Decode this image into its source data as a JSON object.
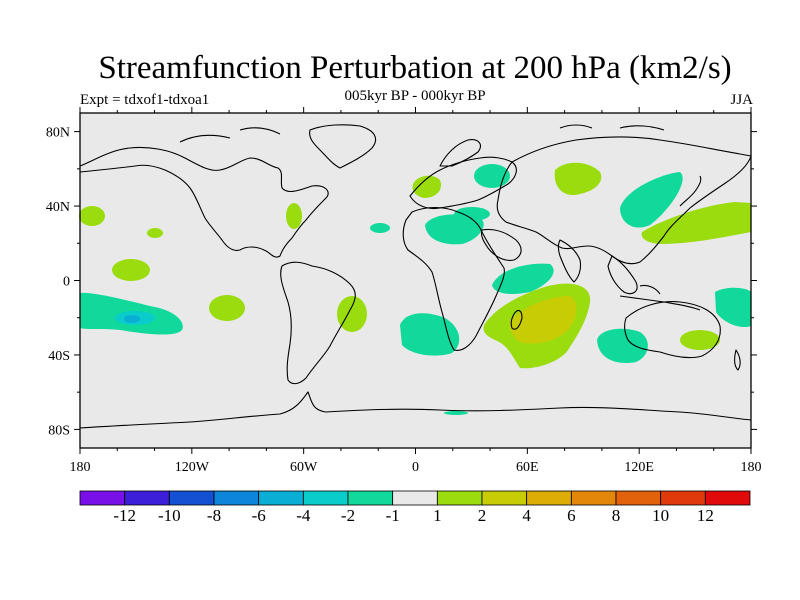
{
  "header": {
    "title": "Streamfunction Perturbation at 200 hPa (km2/s)",
    "subtitle": "005kyr BP - 000kyr BP",
    "experiment": "Expt = tdxof1-tdxoa1",
    "season": "JJA"
  },
  "axes": {
    "lat_ticks": [
      "80N",
      "40N",
      "0",
      "40S",
      "80S"
    ],
    "lon_ticks": [
      "180",
      "120W",
      "60W",
      "0",
      "60E",
      "120E",
      "180"
    ]
  },
  "colorbar": {
    "labels": [
      "-12",
      "-10",
      "-8",
      "-6",
      "-4",
      "-2",
      "-1",
      "1",
      "2",
      "4",
      "6",
      "8",
      "10",
      "12"
    ],
    "colors": [
      "#7a10e8",
      "#3c1fd8",
      "#1450d2",
      "#0b86da",
      "#0aaed4",
      "#09cccb",
      "#11d99b",
      "#e9e9e9",
      "#9bdc0e",
      "#c8cc05",
      "#ddad05",
      "#e2870a",
      "#e2620b",
      "#e0390c",
      "#e00a0a"
    ]
  },
  "colors": {
    "land_background": "#e9e9e9",
    "negative_1": "#11d99b",
    "negative_2": "#09cccb",
    "positive_1": "#9bdc0e",
    "positive_2": "#c8cc05"
  }
}
